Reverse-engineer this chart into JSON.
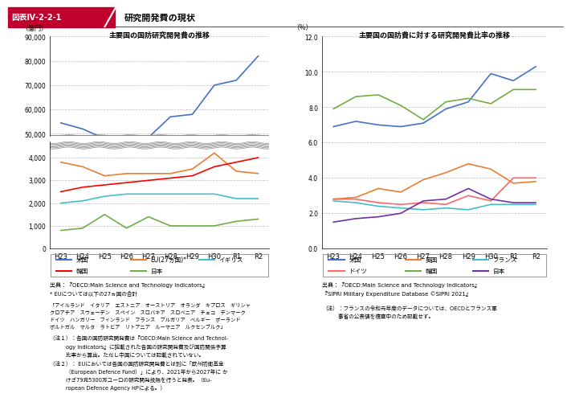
{
  "xlabel": [
    "H23",
    "H24",
    "H25",
    "H26",
    "H27",
    "H28",
    "H29",
    "H30",
    "R1",
    "R2"
  ],
  "title_left": "主要国の国防研究開発費の推移",
  "ylabel_left": "（億円）",
  "title_right": "主要国の国防費に対する研究開発費比率の推移",
  "ylabel_right": "（％）",
  "left_series": [
    {
      "name": "米国",
      "color": "#4472C4",
      "data": [
        54500,
        52000,
        48000,
        47000,
        48500,
        57000,
        58000,
        70000,
        72000,
        82000
      ]
    },
    {
      "name": "EU(27ヵ国)*",
      "color": "#ED7D31",
      "data": [
        3800,
        3600,
        3200,
        3300,
        3300,
        3300,
        3500,
        4200,
        3400,
        3300
      ]
    },
    {
      "name": "イギリス",
      "color": "#44BFC8",
      "data": [
        2000,
        2100,
        2300,
        2400,
        2400,
        2400,
        2400,
        2400,
        2200,
        2200
      ]
    },
    {
      "name": "韓国",
      "color": "#FF0000",
      "data": [
        2500,
        2700,
        2800,
        2900,
        3000,
        3100,
        3200,
        3600,
        3800,
        4000
      ]
    },
    {
      "name": "日本",
      "color": "#70AD47",
      "data": [
        800,
        900,
        1500,
        900,
        1400,
        1000,
        1000,
        1000,
        1200,
        1300
      ]
    }
  ],
  "right_series": [
    {
      "name": "米国",
      "color": "#4472C4",
      "data": [
        6.9,
        7.2,
        7.0,
        6.9,
        7.1,
        7.9,
        8.3,
        9.9,
        9.5,
        10.3
      ]
    },
    {
      "name": "英国",
      "color": "#ED7D31",
      "data": [
        2.8,
        2.9,
        3.4,
        3.2,
        3.9,
        4.3,
        4.8,
        4.5,
        3.7,
        3.8
      ]
    },
    {
      "name": "フランス",
      "color": "#44BFC8",
      "data": [
        2.7,
        2.6,
        2.4,
        2.3,
        2.2,
        2.3,
        2.2,
        2.5,
        null,
        2.5
      ]
    },
    {
      "name": "ドイツ",
      "color": "#FF6666",
      "data": [
        2.8,
        2.8,
        2.6,
        2.5,
        2.6,
        2.5,
        3.0,
        2.7,
        4.0,
        4.0
      ]
    },
    {
      "name": "韓国",
      "color": "#70AD47",
      "data": [
        7.9,
        8.6,
        8.7,
        8.1,
        7.3,
        8.3,
        8.5,
        8.2,
        9.0,
        9.0
      ]
    },
    {
      "name": "日本",
      "color": "#7030A0",
      "data": [
        1.5,
        1.7,
        1.8,
        2.0,
        2.7,
        2.8,
        3.4,
        2.8,
        2.6,
        2.6
      ]
    }
  ],
  "header_label": "図表Ⅳ-2-2-1",
  "header_title": "研究開発費の現状",
  "header_color": "#C0002D",
  "source_left": "出典：『OECD:Main Science and Technology Indicators』",
  "note_eu": "* EUについては以下の27ヵ国の合計",
  "note_eu_countries": "「アイルランド　イタリア　エストニア　オーストリア　オランダ　キプロス　ギリシャ\nクロアチア　スウェーデン　スペイン　スロバキア　スロベニア　チェコ　デンマーク\nドイツ　ハンガリー　フィンランド　フランス　ブルガリア　ベルギー　ポーランド\nポルトガル　マルタ　ラトビア　リトアニア　ルーマニア　ルクセンブルク」",
  "note1": "（注１）：各国の国防研究開発費は『OECD:Main Science and Technol-\n　　　ogy Indicators』に掟載された各国の研究開発費及び国防関係予算\n　　　比率から算出。ただし中国については記載されていない。",
  "note2": "（注２）： EUにおいては各国の国防研究開発費とは別に「欧州防衛基金\n　　　（European Defence Fund）」により、2021年から2027年に か\n　　　けざ79兄5300万ユーロの研究開発投賄を行うと発表。（Eu-\n　　　ropean Defence Agency HPによる。）",
  "source_right_1": "出典：『OECD:Main Science and Technology Indicators』",
  "source_right_2": "『SIPRI Military Expenditure Database ©SIPRI 2021』",
  "note_right": "（注）：フランスの令和元年度のデータについては、OECDとフランス軍\n　　　事省の公表値を積査中のため記載せず。"
}
